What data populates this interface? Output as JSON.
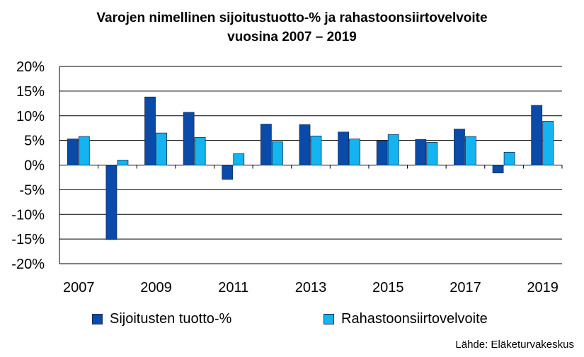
{
  "chart_data": {
    "type": "bar",
    "title_lines": [
      "Varojen nimellinen sijoitustuotto-% ja rahastoonsiirtovelvoite",
      "vuosina 2007 – 2019"
    ],
    "categories": [
      "2007",
      "2008",
      "2009",
      "2010",
      "2011",
      "2012",
      "2013",
      "2014",
      "2015",
      "2016",
      "2017",
      "2018",
      "2019"
    ],
    "x_tick_labels": [
      "2007",
      "",
      "2009",
      "",
      "2011",
      "",
      "2013",
      "",
      "2015",
      "",
      "2017",
      "",
      "2019"
    ],
    "series": [
      {
        "name": "Sijoitusten tuotto-%",
        "color": "#0a4aa8",
        "values": [
          5.3,
          -15.1,
          13.8,
          10.7,
          -2.9,
          8.3,
          8.2,
          6.7,
          4.9,
          5.2,
          7.3,
          -1.6,
          12.1
        ]
      },
      {
        "name": "Rahastoonsiirtovelvoite",
        "color": "#14b4f0",
        "values": [
          5.8,
          1.0,
          6.5,
          5.6,
          2.3,
          4.7,
          5.9,
          5.3,
          6.2,
          4.6,
          5.8,
          2.6,
          8.9
        ]
      }
    ],
    "y_ticks": [
      20,
      15,
      10,
      5,
      0,
      -5,
      -10,
      -15,
      -20
    ],
    "y_tick_labels": [
      "20%",
      "15%",
      "10%",
      "5%",
      "0%",
      "-5%",
      "-10%",
      "-15%",
      "-20%"
    ],
    "ylim": [
      -20,
      20
    ],
    "grid": true,
    "legend_position": "bottom",
    "source": "Lähde: Eläketurvakeskus"
  }
}
